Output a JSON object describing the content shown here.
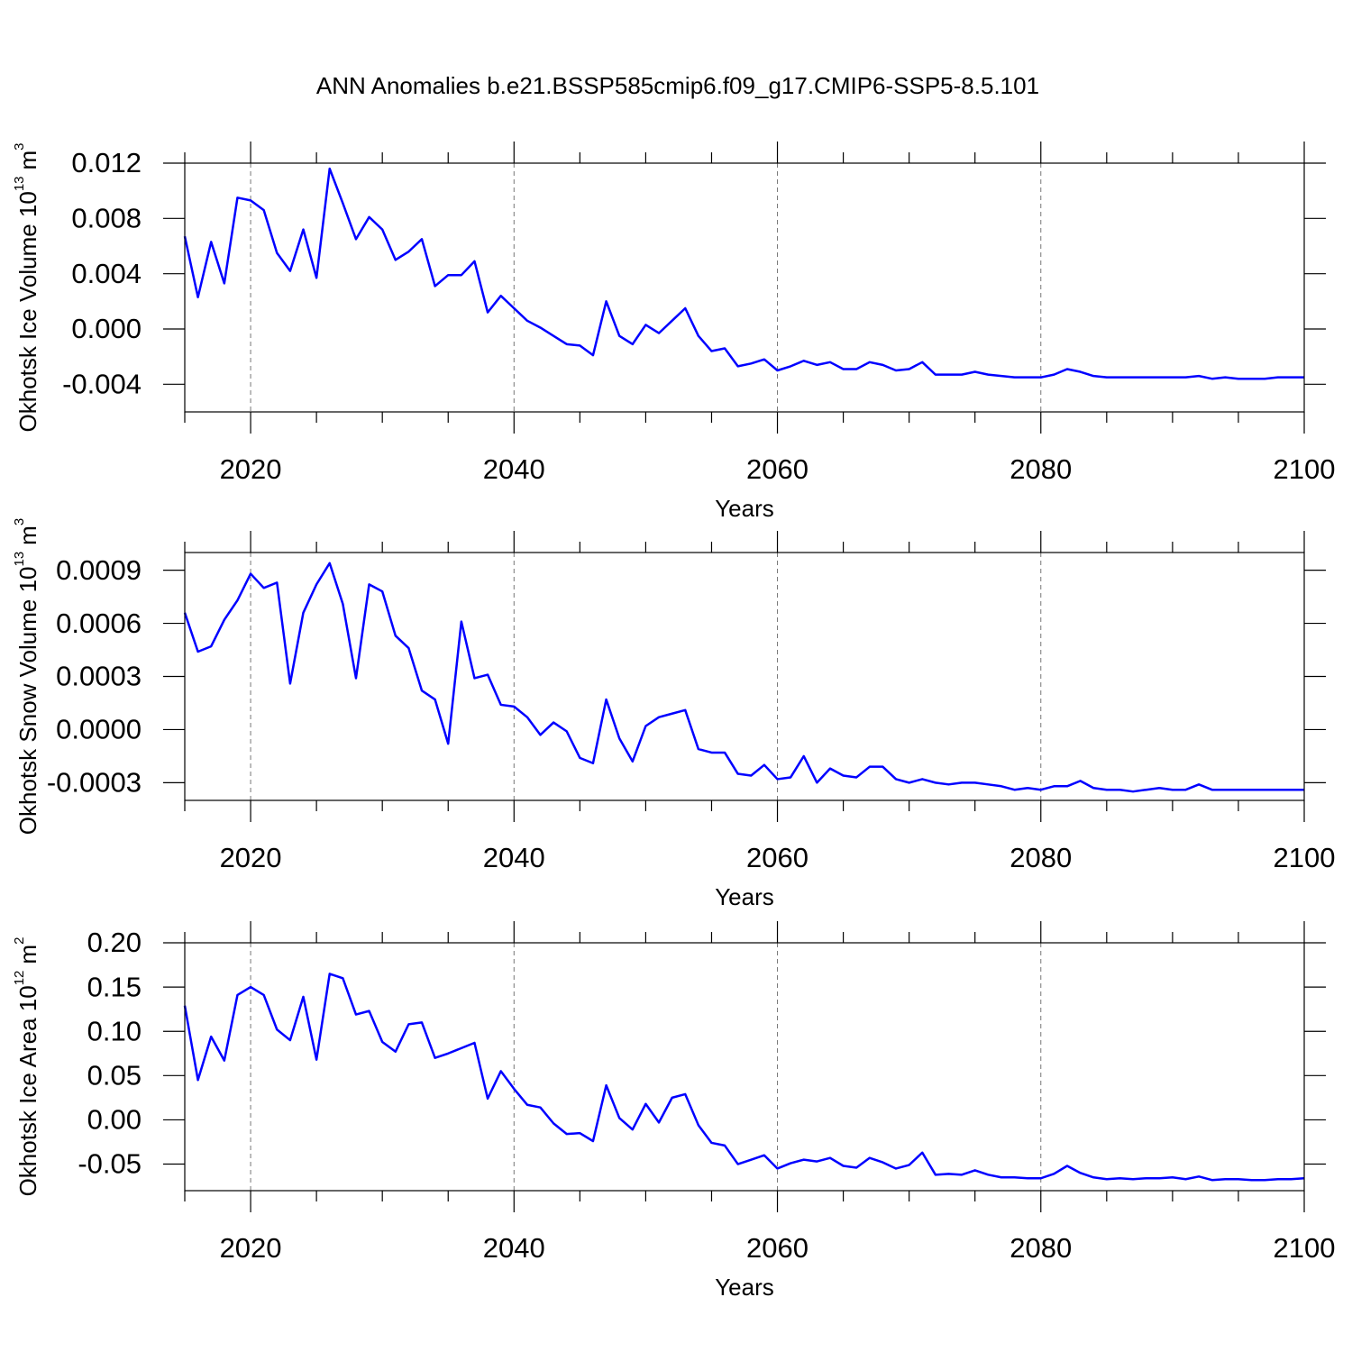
{
  "chart_data": [
    {
      "type": "line",
      "title": "ANN Anomalies b.e21.BSSP585cmip6.f09_g17.CMIP6-SSP5-8.5.101",
      "ylabel": "Okhotsk Ice Volume 10",
      "ylabel_sup": "13",
      "yunit": "m",
      "yunit_sup": "3",
      "xlabel": "Years",
      "color": "#0000ff",
      "grid": "x",
      "xlim": [
        2015,
        2100
      ],
      "xticks": [
        2020,
        2040,
        2060,
        2080,
        2100
      ],
      "xminorticks": [
        2015,
        2025,
        2030,
        2035,
        2045,
        2050,
        2055,
        2065,
        2070,
        2075,
        2085,
        2090,
        2095
      ],
      "ylim": [
        -0.006,
        0.012
      ],
      "yticks": [
        0.012,
        0.008,
        0.004,
        {
          "value": 0,
          "label": "0.000"
        },
        -0.004
      ],
      "x": [
        2015,
        2016,
        2017,
        2018,
        2019,
        2020,
        2021,
        2022,
        2023,
        2024,
        2025,
        2026,
        2027,
        2028,
        2029,
        2030,
        2031,
        2032,
        2033,
        2034,
        2035,
        2036,
        2037,
        2038,
        2039,
        2040,
        2041,
        2042,
        2043,
        2044,
        2045,
        2046,
        2047,
        2048,
        2049,
        2050,
        2051,
        2052,
        2053,
        2054,
        2055,
        2056,
        2057,
        2058,
        2059,
        2060,
        2061,
        2062,
        2063,
        2064,
        2065,
        2066,
        2067,
        2068,
        2069,
        2070,
        2071,
        2072,
        2073,
        2074,
        2075,
        2076,
        2077,
        2078,
        2079,
        2080,
        2081,
        2082,
        2083,
        2084,
        2085,
        2086,
        2087,
        2088,
        2089,
        2090,
        2091,
        2092,
        2093,
        2094,
        2095,
        2096,
        2097,
        2098,
        2099,
        2100
      ],
      "values": [
        0.0067,
        0.0023,
        0.0063,
        0.0033,
        0.0095,
        0.0093,
        0.0086,
        0.0055,
        0.0042,
        0.0072,
        0.0037,
        0.0116,
        0.0091,
        0.0065,
        0.0081,
        0.0072,
        0.005,
        0.0056,
        0.0065,
        0.0031,
        0.0039,
        0.0039,
        0.0049,
        0.0012,
        0.0024,
        0.0015,
        0.0006,
        0.0001,
        -0.0005,
        -0.0011,
        -0.0012,
        -0.0019,
        0.002,
        -0.0005,
        -0.0011,
        0.0003,
        -0.0003,
        0.0006,
        0.0015,
        -0.0005,
        -0.0016,
        -0.0014,
        -0.0027,
        -0.0025,
        -0.0022,
        -0.003,
        -0.0027,
        -0.0023,
        -0.0026,
        -0.0024,
        -0.0029,
        -0.0029,
        -0.0024,
        -0.0026,
        -0.003,
        -0.0029,
        -0.0024,
        -0.0033,
        -0.0033,
        -0.0033,
        -0.0031,
        -0.0033,
        -0.0034,
        -0.0035,
        -0.0035,
        -0.0035,
        -0.0033,
        -0.0029,
        -0.0031,
        -0.0034,
        -0.0035,
        -0.0035,
        -0.0035,
        -0.0035,
        -0.0035,
        -0.0035,
        -0.0035,
        -0.0034,
        -0.0036,
        -0.0035,
        -0.0036,
        -0.0036,
        -0.0036,
        -0.0035,
        -0.0035,
        -0.0035
      ]
    },
    {
      "type": "line",
      "ylabel": "Okhotsk Snow Volume 10",
      "ylabel_sup": "13",
      "yunit": "m",
      "yunit_sup": "3",
      "xlabel": "Years",
      "color": "#0000ff",
      "grid": "x",
      "xlim": [
        2015,
        2100
      ],
      "xticks": [
        2020,
        2040,
        2060,
        2080,
        2100
      ],
      "xminorticks": [
        2015,
        2025,
        2030,
        2035,
        2045,
        2050,
        2055,
        2065,
        2070,
        2075,
        2085,
        2090,
        2095
      ],
      "ylim": [
        -0.0004,
        0.001
      ],
      "yticks": [
        0.0009,
        0.0006,
        0.0003,
        {
          "value": 0,
          "label": "0.0000"
        },
        -0.0003
      ],
      "x": [
        2015,
        2016,
        2017,
        2018,
        2019,
        2020,
        2021,
        2022,
        2023,
        2024,
        2025,
        2026,
        2027,
        2028,
        2029,
        2030,
        2031,
        2032,
        2033,
        2034,
        2035,
        2036,
        2037,
        2038,
        2039,
        2040,
        2041,
        2042,
        2043,
        2044,
        2045,
        2046,
        2047,
        2048,
        2049,
        2050,
        2051,
        2052,
        2053,
        2054,
        2055,
        2056,
        2057,
        2058,
        2059,
        2060,
        2061,
        2062,
        2063,
        2064,
        2065,
        2066,
        2067,
        2068,
        2069,
        2070,
        2071,
        2072,
        2073,
        2074,
        2075,
        2076,
        2077,
        2078,
        2079,
        2080,
        2081,
        2082,
        2083,
        2084,
        2085,
        2086,
        2087,
        2088,
        2089,
        2090,
        2091,
        2092,
        2093,
        2094,
        2095,
        2096,
        2097,
        2098,
        2099,
        2100
      ],
      "values": [
        0.00066,
        0.00044,
        0.00047,
        0.00062,
        0.00073,
        0.00088,
        0.0008,
        0.00083,
        0.00026,
        0.00066,
        0.00082,
        0.00094,
        0.00071,
        0.00029,
        0.00082,
        0.00078,
        0.00053,
        0.00046,
        0.00022,
        0.00017,
        -8e-05,
        0.00061,
        0.00029,
        0.00031,
        0.00014,
        0.00013,
        7e-05,
        -3e-05,
        4e-05,
        -1e-05,
        -0.00016,
        -0.00019,
        0.00017,
        -5e-05,
        -0.00018,
        2e-05,
        7e-05,
        9e-05,
        0.00011,
        -0.00011,
        -0.00013,
        -0.00013,
        -0.00025,
        -0.00026,
        -0.0002,
        -0.00028,
        -0.00027,
        -0.00015,
        -0.0003,
        -0.00022,
        -0.00026,
        -0.00027,
        -0.00021,
        -0.00021,
        -0.00028,
        -0.0003,
        -0.00028,
        -0.0003,
        -0.00031,
        -0.0003,
        -0.0003,
        -0.00031,
        -0.00032,
        -0.00034,
        -0.00033,
        -0.00034,
        -0.00032,
        -0.00032,
        -0.00029,
        -0.00033,
        -0.00034,
        -0.00034,
        -0.00035,
        -0.00034,
        -0.00033,
        -0.00034,
        -0.00034,
        -0.00031,
        -0.00034,
        -0.00034,
        -0.00034,
        -0.00034,
        -0.00034,
        -0.00034,
        -0.00034,
        -0.00034
      ]
    },
    {
      "type": "line",
      "ylabel": "Okhotsk Ice Area 10",
      "ylabel_sup": "12",
      "yunit": "m",
      "yunit_sup": "2",
      "xlabel": "Years",
      "color": "#0000ff",
      "grid": "x",
      "xlim": [
        2015,
        2100
      ],
      "xticks": [
        2020,
        2040,
        2060,
        2080,
        2100
      ],
      "xminorticks": [
        2015,
        2025,
        2030,
        2035,
        2045,
        2050,
        2055,
        2065,
        2070,
        2075,
        2085,
        2090,
        2095
      ],
      "ylim": [
        -0.08,
        0.2
      ],
      "yticks": [
        {
          "value": 0.2,
          "label": "0.20"
        },
        0.15,
        {
          "value": 0.1,
          "label": "0.10"
        },
        0.05,
        {
          "value": 0,
          "label": "0.00"
        },
        -0.05
      ],
      "x": [
        2015,
        2016,
        2017,
        2018,
        2019,
        2020,
        2021,
        2022,
        2023,
        2024,
        2025,
        2026,
        2027,
        2028,
        2029,
        2030,
        2031,
        2032,
        2033,
        2034,
        2035,
        2036,
        2037,
        2038,
        2039,
        2040,
        2041,
        2042,
        2043,
        2044,
        2045,
        2046,
        2047,
        2048,
        2049,
        2050,
        2051,
        2052,
        2053,
        2054,
        2055,
        2056,
        2057,
        2058,
        2059,
        2060,
        2061,
        2062,
        2063,
        2064,
        2065,
        2066,
        2067,
        2068,
        2069,
        2070,
        2071,
        2072,
        2073,
        2074,
        2075,
        2076,
        2077,
        2078,
        2079,
        2080,
        2081,
        2082,
        2083,
        2084,
        2085,
        2086,
        2087,
        2088,
        2089,
        2090,
        2091,
        2092,
        2093,
        2094,
        2095,
        2096,
        2097,
        2098,
        2099,
        2100
      ],
      "values": [
        0.129,
        0.045,
        0.094,
        0.067,
        0.141,
        0.15,
        0.141,
        0.102,
        0.09,
        0.139,
        0.068,
        0.165,
        0.16,
        0.119,
        0.123,
        0.088,
        0.077,
        0.108,
        0.11,
        0.07,
        0.075,
        0.081,
        0.087,
        0.024,
        0.055,
        0.035,
        0.017,
        0.014,
        -0.004,
        -0.016,
        -0.015,
        -0.024,
        0.039,
        0.002,
        -0.011,
        0.018,
        -0.003,
        0.025,
        0.029,
        -0.006,
        -0.026,
        -0.029,
        -0.05,
        -0.045,
        -0.04,
        -0.055,
        -0.049,
        -0.045,
        -0.047,
        -0.043,
        -0.052,
        -0.054,
        -0.043,
        -0.048,
        -0.055,
        -0.051,
        -0.037,
        -0.062,
        -0.061,
        -0.062,
        -0.057,
        -0.062,
        -0.065,
        -0.065,
        -0.066,
        -0.066,
        -0.061,
        -0.052,
        -0.06,
        -0.065,
        -0.067,
        -0.066,
        -0.067,
        -0.066,
        -0.066,
        -0.065,
        -0.067,
        -0.064,
        -0.068,
        -0.067,
        -0.067,
        -0.068,
        -0.068,
        -0.067,
        -0.067,
        -0.066
      ]
    }
  ]
}
